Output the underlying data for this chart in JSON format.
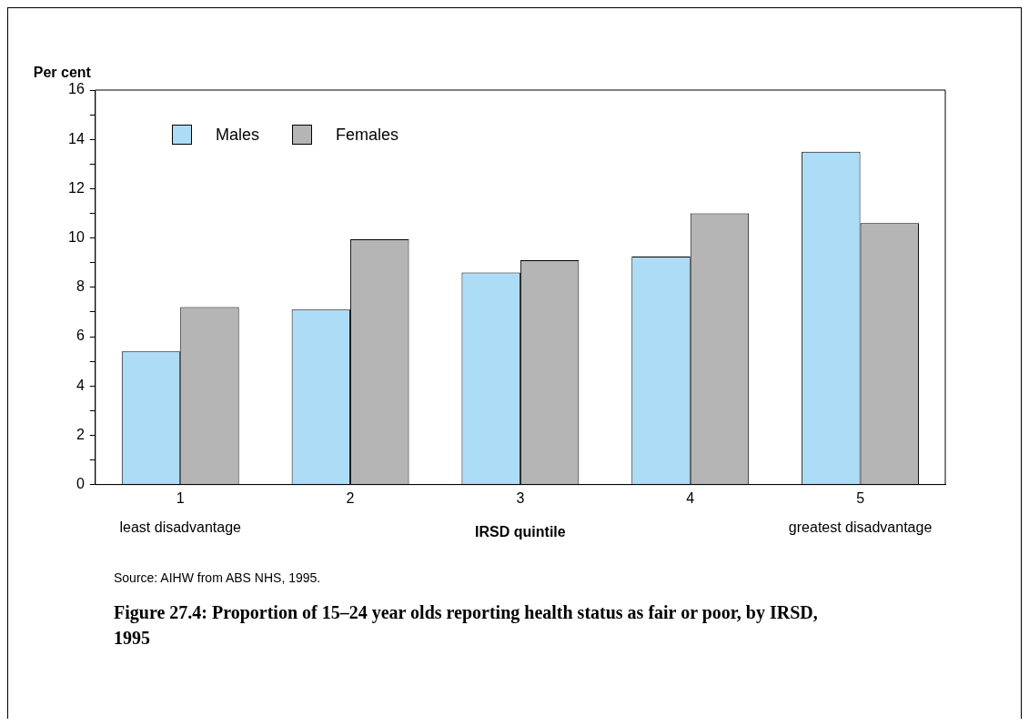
{
  "chart_data": {
    "type": "bar",
    "title": "Figure 27.4: Proportion of 15–24 year olds reporting health status as fair or poor, by IRSD, 1995",
    "xlabel": "IRSD quintile",
    "ylabel": "Per cent",
    "categories": [
      "1",
      "2",
      "3",
      "4",
      "5"
    ],
    "series": [
      {
        "name": "Males",
        "color": "#addcf7",
        "values": [
          5.4,
          7.1,
          8.6,
          9.25,
          13.5
        ]
      },
      {
        "name": "Females",
        "color": "#b5b5b6",
        "values": [
          7.2,
          9.95,
          9.1,
          11.0,
          10.6
        ]
      }
    ],
    "ylim": [
      0,
      16
    ],
    "yticks": [
      0,
      {
        "value": 1,
        "label": null
      },
      2,
      {
        "value": 3,
        "label": null
      },
      4,
      {
        "value": 5,
        "label": null
      },
      6,
      {
        "value": 7,
        "label": null
      },
      8,
      {
        "value": 9,
        "label": null
      },
      10,
      {
        "value": 11,
        "label": null
      },
      12,
      {
        "value": 13,
        "label": null
      },
      14,
      {
        "value": 15,
        "label": null
      },
      16
    ],
    "grid": false,
    "legend": "top left",
    "annotations": [
      "least disadvantage",
      "greatest disadvantage",
      "Source: AIHW from ABS NHS, 1995."
    ]
  }
}
